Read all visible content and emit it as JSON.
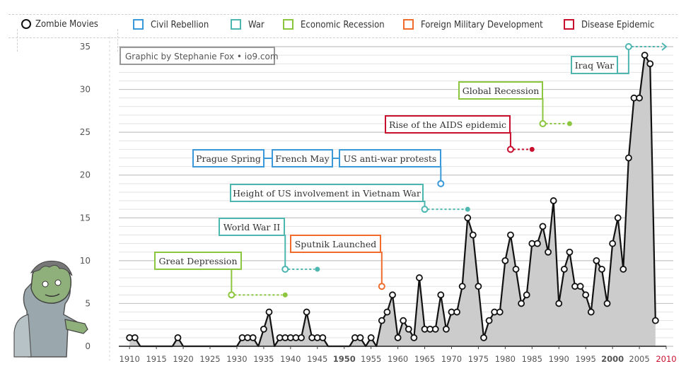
{
  "legend": {
    "main": "Zombie Movies",
    "items": [
      {
        "label": "Civil Rebellion",
        "color": "#3a9ad9"
      },
      {
        "label": "War",
        "color": "#4db6b0"
      },
      {
        "label": "Economic Recession",
        "color": "#8cc63f"
      },
      {
        "label": "Foreign Military Development",
        "color": "#f06c2c"
      },
      {
        "label": "Disease Epidemic",
        "color": "#c8102e"
      }
    ]
  },
  "credit": "Graphic by Stephanie Fox • io9.com",
  "colors": {
    "fill": "#cccccc",
    "line": "#111111",
    "grid": "#bdbdbd",
    "civil": "#3a9ad9",
    "war": "#4db6b0",
    "econ": "#8cc63f",
    "military": "#f06c2c",
    "disease": "#c8102e",
    "year_2010": "#c8102e"
  },
  "chart_data": {
    "type": "area",
    "x": [
      1910,
      1911,
      1912,
      1913,
      1914,
      1915,
      1916,
      1917,
      1918,
      1919,
      1920,
      1921,
      1922,
      1923,
      1924,
      1925,
      1926,
      1927,
      1928,
      1929,
      1930,
      1931,
      1932,
      1933,
      1934,
      1935,
      1936,
      1937,
      1938,
      1939,
      1940,
      1941,
      1942,
      1943,
      1944,
      1945,
      1946,
      1947,
      1948,
      1949,
      1950,
      1951,
      1952,
      1953,
      1954,
      1955,
      1956,
      1957,
      1958,
      1959,
      1960,
      1961,
      1962,
      1963,
      1964,
      1965,
      1966,
      1967,
      1968,
      1969,
      1970,
      1971,
      1972,
      1973,
      1974,
      1975,
      1976,
      1977,
      1978,
      1979,
      1980,
      1981,
      1982,
      1983,
      1984,
      1985,
      1986,
      1987,
      1988,
      1989,
      1990,
      1991,
      1992,
      1993,
      1994,
      1995,
      1996,
      1997,
      1998,
      1999,
      2000,
      2001,
      2002,
      2003,
      2004,
      2005,
      2006,
      2007,
      2008
    ],
    "y": [
      1,
      1,
      0,
      0,
      0,
      0,
      0,
      0,
      0,
      1,
      0,
      0,
      0,
      0,
      0,
      0,
      0,
      0,
      0,
      0,
      0,
      1,
      1,
      1,
      0,
      2,
      4,
      0,
      1,
      1,
      1,
      1,
      1,
      4,
      1,
      1,
      1,
      0,
      0,
      0,
      0,
      0,
      1,
      1,
      0,
      1,
      0,
      3,
      4,
      6,
      1,
      3,
      2,
      1,
      8,
      2,
      2,
      2,
      6,
      2,
      4,
      4,
      7,
      15,
      13,
      7,
      1,
      3,
      4,
      4,
      10,
      13,
      9,
      5,
      6,
      12,
      12,
      14,
      11,
      17,
      5,
      9,
      11,
      7,
      7,
      6,
      4,
      10,
      9,
      5,
      12,
      15,
      9,
      22,
      29,
      29,
      34,
      33,
      3
    ],
    "xlim": [
      1908,
      2010
    ],
    "ylim": [
      0,
      35
    ],
    "xticks": [
      1910,
      1915,
      1920,
      1925,
      1930,
      1935,
      1940,
      1945,
      1950,
      1955,
      1960,
      1965,
      1970,
      1975,
      1980,
      1985,
      1990,
      1995,
      2000,
      2005,
      2010
    ],
    "yticks": [
      0,
      5,
      10,
      15,
      20,
      25,
      30,
      35
    ],
    "grid": true,
    "events": [
      {
        "label": "Great Depression",
        "category": "econ",
        "year": 1929,
        "dot_y": 6,
        "end_year": 1939
      },
      {
        "label": "World War II",
        "category": "war",
        "year": 1939,
        "dot_y": 9,
        "end_year": 1945
      },
      {
        "label": "Sputnik Launched",
        "category": "military",
        "year": 1957,
        "dot_y": 7,
        "end_year": null
      },
      {
        "label": "Height of US involvement in Vietnam War",
        "category": "war",
        "year": 1965,
        "dot_y": 16,
        "end_year": 1973
      },
      {
        "label": "Prague Spring",
        "category": "civil",
        "year": 1968,
        "dot_y": 19,
        "end_year": null
      },
      {
        "label": "French May",
        "category": "civil",
        "year": 1968,
        "dot_y": 19,
        "end_year": null
      },
      {
        "label": "US anti-war protests",
        "category": "civil",
        "year": 1968,
        "dot_y": 19,
        "end_year": null
      },
      {
        "label": "Rise of the AIDS epidemic",
        "category": "disease",
        "year": 1981,
        "dot_y": 23,
        "end_year": 1985
      },
      {
        "label": "Global Recession",
        "category": "econ",
        "year": 1987,
        "dot_y": 26,
        "end_year": 1992
      },
      {
        "label": "Iraq War",
        "category": "war",
        "year": 2003,
        "dot_y": 35,
        "end_year": 2010
      }
    ]
  }
}
